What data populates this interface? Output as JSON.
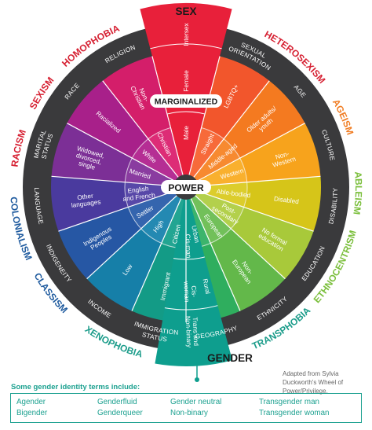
{
  "center_label": "POWER",
  "inner_ring_label": "MARGINALIZED",
  "gender_label": "GENDER",
  "sex_label": "SEX",
  "sex_segments": [
    "Intersex",
    "Female",
    "Male"
  ],
  "gender_segments": [
    "Cis-man",
    "Cis-\nwoman",
    "Trans and\nNon-binary"
  ],
  "power_segments": [
    "Straight",
    "Middle-aged",
    "Western",
    "Able-bodied",
    "Post-\nsecondary",
    "European",
    "Urban",
    "Citizen",
    "High",
    "Settler",
    "English\nand French",
    "Married",
    "White",
    "Christian"
  ],
  "marginalized_segments": [
    "LGBTQ+",
    "Older adults/\nyouth",
    "Non-\nWestern",
    "Disabled",
    "No formal\neducation",
    "Non-\nEuropean",
    "Rural",
    "Immigrant",
    "Low",
    "Indigenous\nPeoples",
    "Other\nlanguages",
    "Widowed,\ndivorced,\nsingle",
    "Racialized",
    "Non-\nChristian"
  ],
  "dimensions": [
    "SEXUAL\nORIENTATION",
    "AGE",
    "CULTURE",
    "DISABILITY",
    "EDUCATION",
    "ETHNICITY",
    "GEOGRAPHY",
    "IMMIGRATION\nSTATUS",
    "INCOME",
    "INDIGENEITY",
    "LANGUAGE",
    "MARITAL\nSTATUS",
    "RACE",
    "RELIGION"
  ],
  "isms": [
    "HETEROSEXISM",
    "AGEISM",
    "ABLEISM",
    "ETHNOCENTRISM",
    "TRANSPHOBIA",
    "XENOPHOBIA",
    "CLASSISM",
    "COLONIALISM",
    "RACISM",
    "SEXISM",
    "HOMOPHOBIA"
  ],
  "credit": "Adapted from Sylvia\nDuckworth's Wheel of\nPower/Privilege.",
  "terms_caption": "Some gender identity terms include:",
  "terms": [
    [
      "Agender",
      "Bigender"
    ],
    [
      "Genderfluid",
      "Genderqueer"
    ],
    [
      "Gender neutral",
      "Non-binary"
    ],
    [
      "Transgender man",
      "Transgender woman"
    ]
  ],
  "colors": {
    "dark_ring": "#3a3a3c",
    "sex": "#e8203a",
    "gender": "#0e9e8e",
    "ism_red": "#d62032",
    "ism_orange": "#f07c22",
    "ism_green": "#7bbf3c",
    "ism_teal": "#1b9c8a",
    "ism_blue": "#1e5a9e"
  }
}
